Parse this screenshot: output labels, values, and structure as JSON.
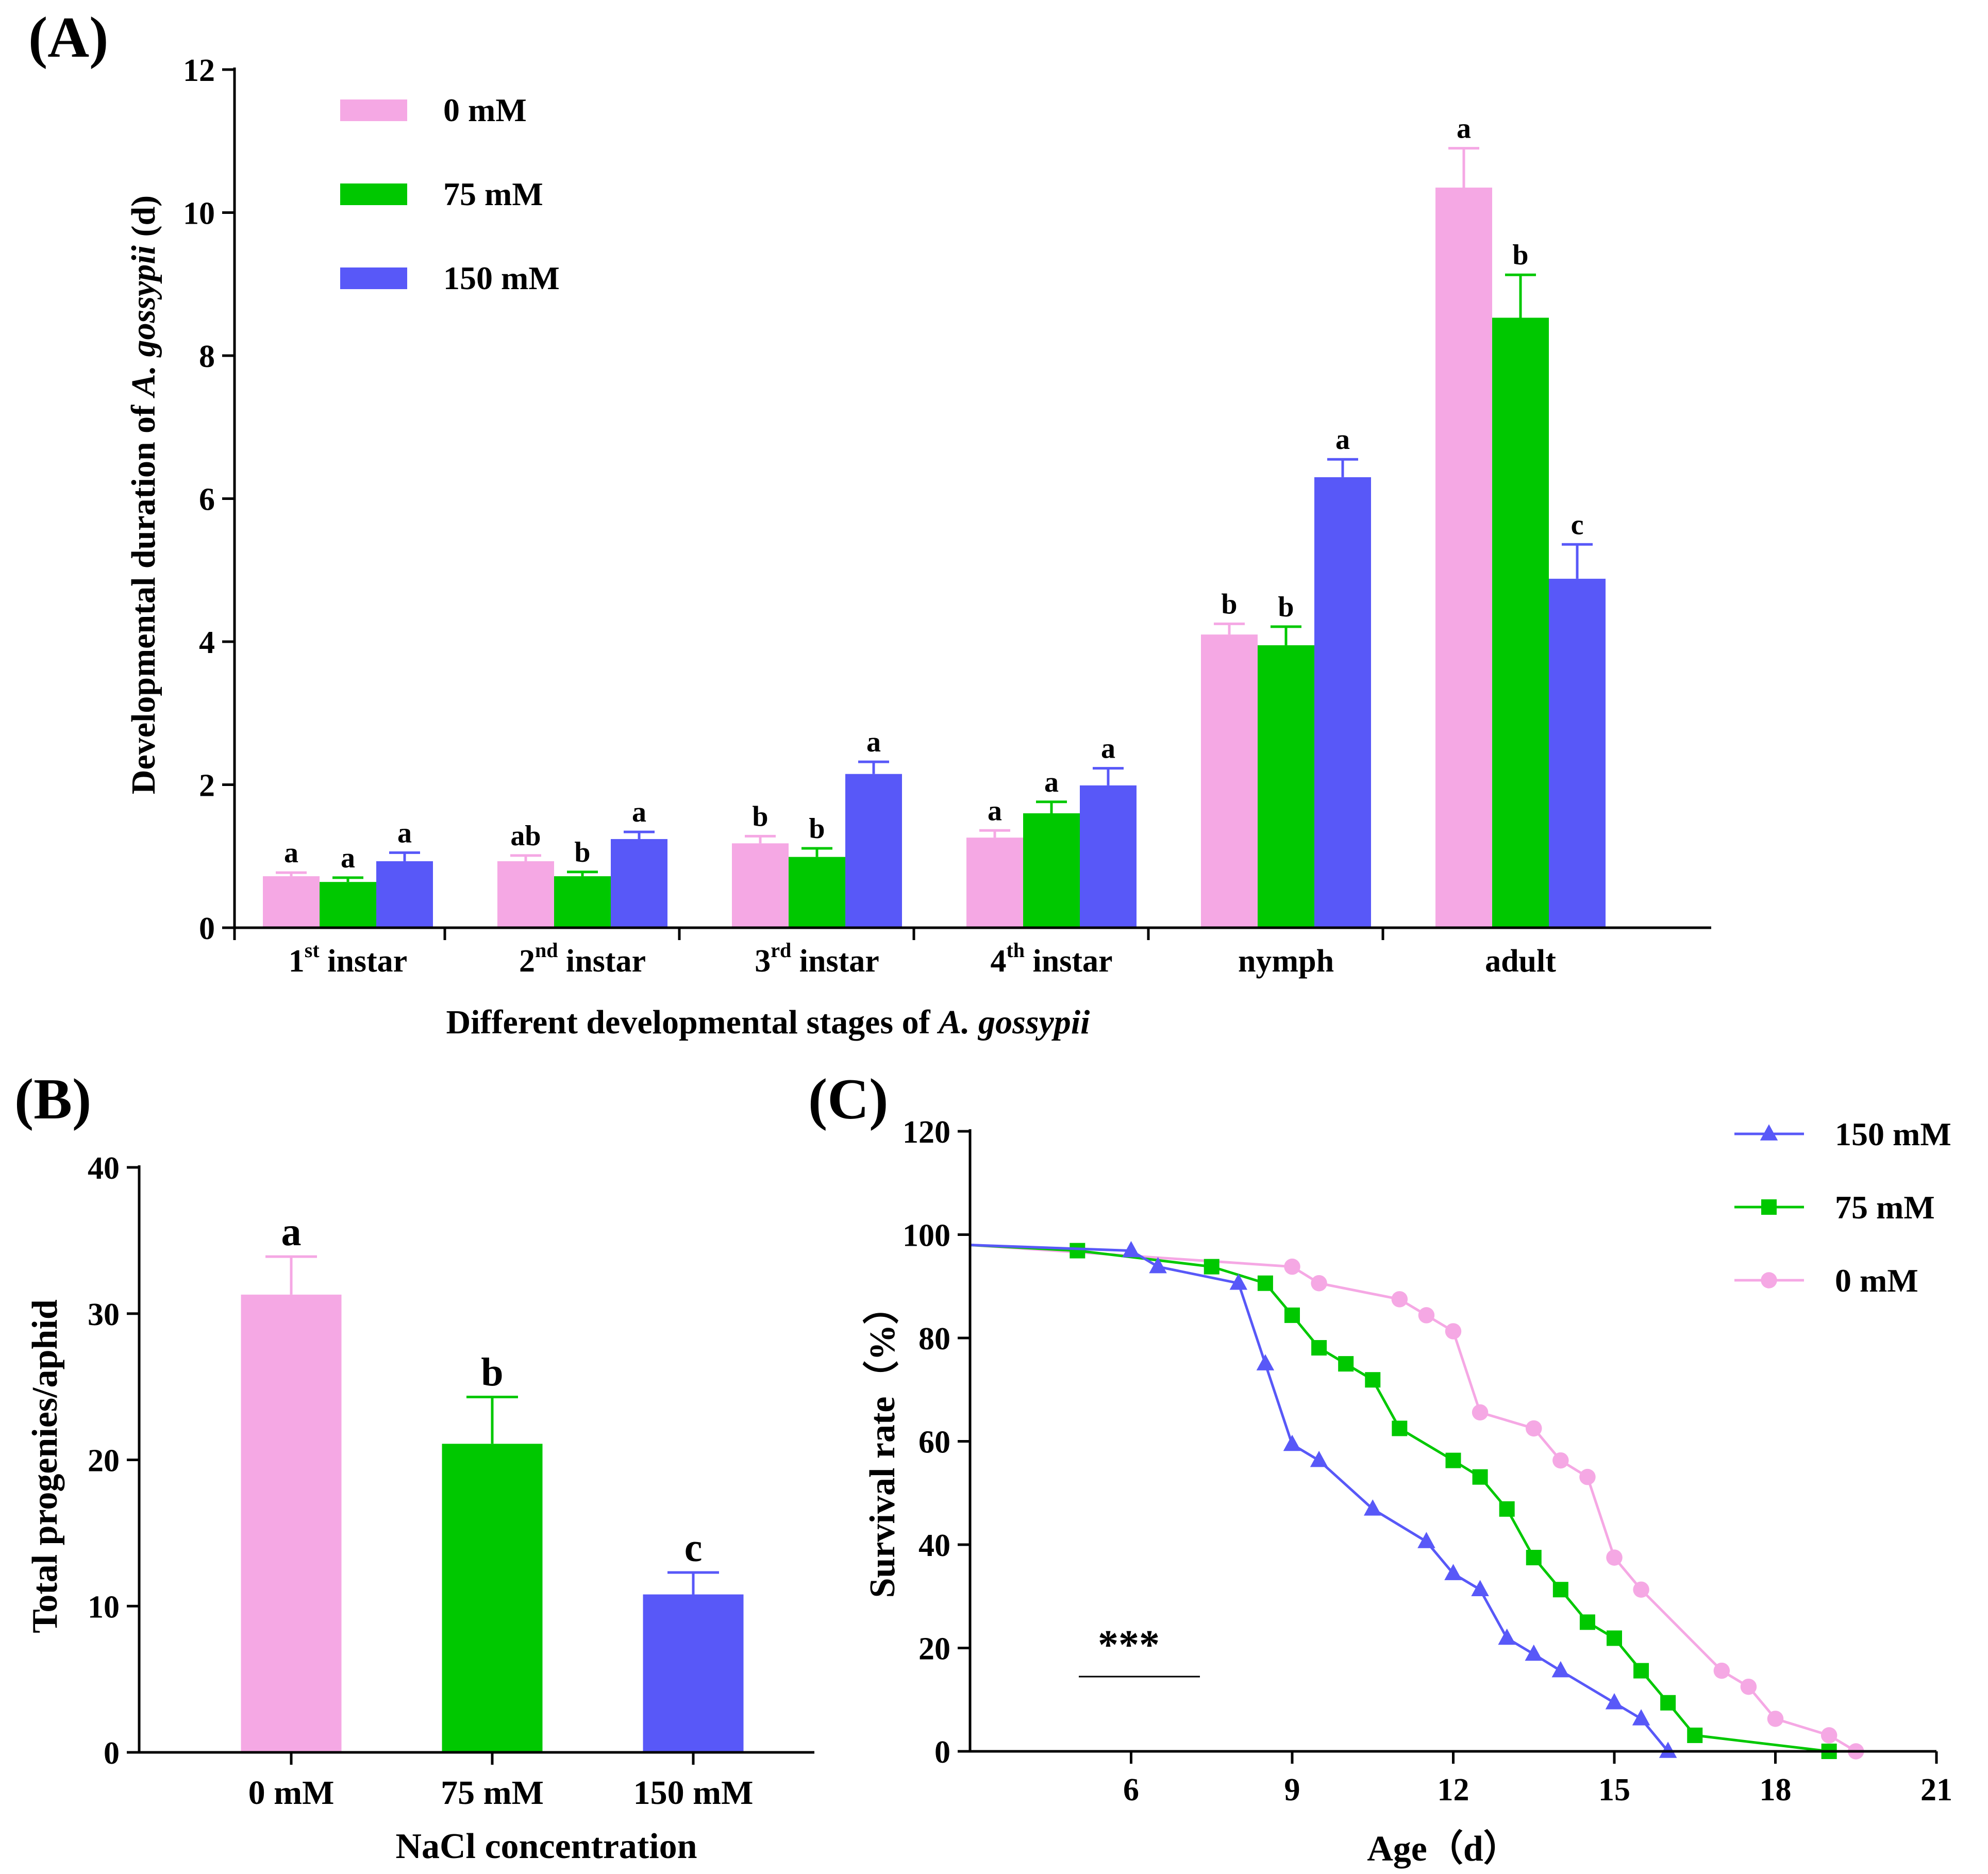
{
  "colors": {
    "c0": "#F5A8E4",
    "c75": "#00C800",
    "c150": "#5858F8",
    "axis": "#000000"
  },
  "chart_data": [
    {
      "panel": "(A)",
      "type": "bar",
      "xlabel_prefix": "Different developmental stages of ",
      "xlabel_italic": "A. gossypii",
      "ylabel_prefix": "Developmental duration of ",
      "ylabel_italic": "A. gossypii",
      "ylabel_suffix": " (d)",
      "ylim": [
        0,
        12
      ],
      "yticks": [
        "0",
        "2",
        "4",
        "6",
        "8",
        "10",
        "12"
      ],
      "categories": [
        {
          "pre": "1",
          "sup": "st",
          "post": " instar"
        },
        {
          "pre": "2",
          "sup": "nd",
          "post": " instar"
        },
        {
          "pre": "3",
          "sup": "rd",
          "post": " instar"
        },
        {
          "pre": "4",
          "sup": "th",
          "post": " instar"
        },
        {
          "pre": "nymph",
          "sup": "",
          "post": ""
        },
        {
          "pre": "adult",
          "sup": "",
          "post": ""
        }
      ],
      "legend": [
        "0 mM",
        "75 mM",
        "150 mM"
      ],
      "series": [
        {
          "name": "0 mM",
          "values": [
            0.72,
            0.93,
            1.18,
            1.26,
            4.1,
            10.35
          ],
          "errors": [
            0.05,
            0.08,
            0.1,
            0.1,
            0.15,
            0.55
          ],
          "letters": [
            "a",
            "ab",
            "b",
            "a",
            "b",
            "a"
          ]
        },
        {
          "name": "75 mM",
          "values": [
            0.64,
            0.72,
            0.99,
            1.6,
            3.95,
            8.53
          ],
          "errors": [
            0.06,
            0.06,
            0.12,
            0.16,
            0.26,
            0.6
          ],
          "letters": [
            "a",
            "b",
            "b",
            "a",
            "b",
            "b"
          ]
        },
        {
          "name": "150 mM",
          "values": [
            0.93,
            1.24,
            2.15,
            1.99,
            6.3,
            4.88
          ],
          "errors": [
            0.12,
            0.1,
            0.17,
            0.24,
            0.25,
            0.48
          ],
          "letters": [
            "a",
            "a",
            "a",
            "a",
            "a",
            "c"
          ]
        }
      ]
    },
    {
      "panel": "(B)",
      "type": "bar",
      "xlabel": "NaCl concentration",
      "ylabel": "Total progenies/aphid",
      "ylim": [
        0,
        40
      ],
      "yticks": [
        "0",
        "10",
        "20",
        "30",
        "40"
      ],
      "categories": [
        "0 mM",
        "75 mM",
        "150 mM"
      ],
      "values": [
        31.3,
        21.1,
        10.8
      ],
      "errors": [
        2.6,
        3.2,
        1.5
      ],
      "letters": [
        "a",
        "b",
        "c"
      ]
    },
    {
      "panel": "(C)",
      "type": "line",
      "xlabel": "Age（d）",
      "ylabel": "Survival rate（%）",
      "xlim": [
        3,
        21
      ],
      "ylim": [
        0,
        120
      ],
      "xticks": [
        "6",
        "9",
        "12",
        "15",
        "18",
        "21"
      ],
      "yticks": [
        "0",
        "20",
        "40",
        "60",
        "80",
        "100",
        "120"
      ],
      "annotation": "***",
      "legend": [
        "150 mM",
        "75 mM",
        "0 mM"
      ],
      "series": [
        {
          "name": "150 mM",
          "marker": "triangle",
          "points": [
            [
              3,
              98
            ],
            [
              6,
              96.9
            ],
            [
              6.5,
              93.8
            ],
            [
              8,
              90.6
            ],
            [
              8.5,
              75
            ],
            [
              9,
              59.4
            ],
            [
              9.5,
              56.3
            ],
            [
              10.5,
              46.9
            ],
            [
              11.5,
              40.6
            ],
            [
              12,
              34.4
            ],
            [
              12.5,
              31.3
            ],
            [
              13,
              21.9
            ],
            [
              13.5,
              18.8
            ],
            [
              14,
              15.6
            ],
            [
              15,
              9.4
            ],
            [
              15.5,
              6.3
            ],
            [
              16,
              0
            ]
          ]
        },
        {
          "name": "75 mM",
          "marker": "square",
          "points": [
            [
              3,
              98
            ],
            [
              5,
              96.9
            ],
            [
              7.5,
              93.8
            ],
            [
              8.5,
              90.6
            ],
            [
              9,
              84.4
            ],
            [
              9.5,
              78.1
            ],
            [
              10,
              75
            ],
            [
              10.5,
              71.9
            ],
            [
              11,
              62.5
            ],
            [
              12,
              56.3
            ],
            [
              12.5,
              53.1
            ],
            [
              13,
              46.9
            ],
            [
              13.5,
              37.5
            ],
            [
              14,
              31.3
            ],
            [
              14.5,
              25
            ],
            [
              15,
              21.9
            ],
            [
              15.5,
              15.6
            ],
            [
              16,
              9.4
            ],
            [
              16.5,
              3.1
            ],
            [
              19,
              0
            ]
          ]
        },
        {
          "name": "0 mM",
          "marker": "circle",
          "points": [
            [
              3,
              98
            ],
            [
              9,
              93.8
            ],
            [
              9.5,
              90.6
            ],
            [
              11,
              87.5
            ],
            [
              11.5,
              84.4
            ],
            [
              12,
              81.3
            ],
            [
              12.5,
              65.6
            ],
            [
              13.5,
              62.5
            ],
            [
              14,
              56.3
            ],
            [
              14.5,
              53.1
            ],
            [
              15,
              37.5
            ],
            [
              15.5,
              31.3
            ],
            [
              17,
              15.6
            ],
            [
              17.5,
              12.5
            ],
            [
              18,
              6.3
            ],
            [
              19,
              3.1
            ],
            [
              19.5,
              0
            ]
          ]
        }
      ]
    }
  ]
}
